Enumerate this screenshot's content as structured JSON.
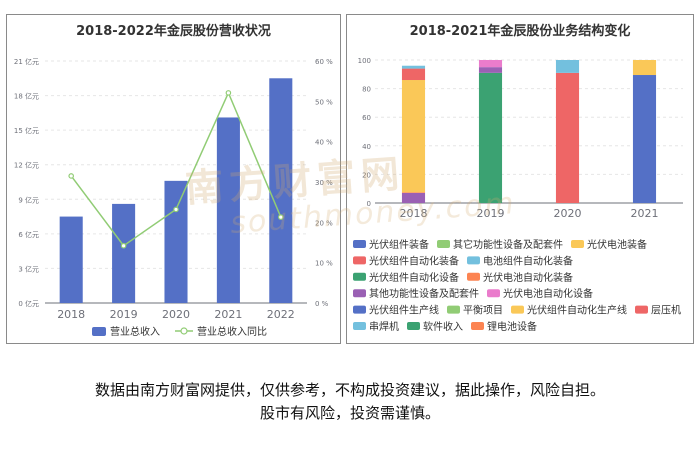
{
  "left": {
    "title": "2018-2022年金辰股份营收状况",
    "y_left_ticks": [
      "0 亿元",
      "3 亿元",
      "6 亿元",
      "9 亿元",
      "12 亿元",
      "15 亿元",
      "18 亿元",
      "21 亿元"
    ],
    "y_right_ticks": [
      "0 %",
      "10 %",
      "20 %",
      "30 %",
      "40 %",
      "50 %",
      "60 %"
    ],
    "legend": {
      "bar": "营业总收入",
      "line": "营业总收入同比"
    }
  },
  "right": {
    "title": "2018-2021年金辰股份业务结构变化",
    "y_ticks": [
      "0",
      "20",
      "40",
      "60",
      "80",
      "100"
    ]
  },
  "disclaimer": {
    "line1": "数据由南方财富网提供，仅供参考，不构成投资建议，据此操作，风险自担。",
    "line2": "股市有风险，投资需谨慎。"
  },
  "watermark": {
    "cn": "南方财富网",
    "en": "southmoney.com"
  },
  "chart_data": [
    {
      "type": "bar",
      "title": "2018-2022年金辰股份营收状况",
      "categories": [
        "2018",
        "2019",
        "2020",
        "2021",
        "2022"
      ],
      "series": [
        {
          "name": "营业总收入",
          "type": "bar",
          "axis": "left",
          "unit": "亿元",
          "color": "#5470c6",
          "values": [
            7.5,
            8.6,
            10.6,
            16.1,
            19.5
          ]
        },
        {
          "name": "营业总收入同比",
          "type": "line",
          "axis": "right",
          "unit": "%",
          "color": "#91cc75",
          "values": [
            31.5,
            14.2,
            23.2,
            52.1,
            21.3
          ]
        }
      ],
      "ylim_left": [
        0,
        21
      ],
      "ylim_right": [
        0,
        60
      ]
    },
    {
      "type": "bar",
      "stacked": true,
      "title": "2018-2021年金辰股份业务结构变化",
      "categories": [
        "2018",
        "2019",
        "2020",
        "2021"
      ],
      "ylim": [
        0,
        100
      ],
      "legend": [
        {
          "name": "光伏组件装备",
          "color": "#5470c6"
        },
        {
          "name": "其它功能性设备及配套件",
          "color": "#91cc75"
        },
        {
          "name": "光伏电池装备",
          "color": "#fac858"
        },
        {
          "name": "光伏组件自动化装备",
          "color": "#ee6666"
        },
        {
          "name": "电池组件自动化装备",
          "color": "#73c0de"
        },
        {
          "name": "光伏组件自动化设备",
          "color": "#3ba272"
        },
        {
          "name": "光伏电池自动化装备",
          "color": "#fc8452"
        },
        {
          "name": "其他功能性设备及配套件",
          "color": "#9a60b4"
        },
        {
          "name": "光伏电池自动化设备",
          "color": "#ea7ccc"
        },
        {
          "name": "光伏组件生产线",
          "color": "#5470c6"
        },
        {
          "name": "平衡项目",
          "color": "#91cc75"
        },
        {
          "name": "光伏组件自动化生产线",
          "color": "#fac858"
        },
        {
          "name": "层压机",
          "color": "#ee6666"
        },
        {
          "name": "串焊机",
          "color": "#73c0de"
        },
        {
          "name": "软件收入",
          "color": "#3ba272"
        },
        {
          "name": "锂电池设备",
          "color": "#fc8452"
        }
      ],
      "stacks": [
        [
          {
            "name": "其他功能性设备及配套件",
            "value": 7.0,
            "color": "#9a60b4"
          },
          {
            "name": "光伏电池自动化装备",
            "value": 0.5,
            "color": "#fc8452"
          },
          {
            "name": "光伏组件自动化生产线",
            "value": 78.5,
            "color": "#fac858"
          },
          {
            "name": "层压机",
            "value": 8.0,
            "color": "#ee6666"
          },
          {
            "name": "串焊机",
            "value": 2.0,
            "color": "#73c0de"
          }
        ],
        [
          {
            "name": "光伏组件自动化设备",
            "value": 91.0,
            "color": "#3ba272"
          },
          {
            "name": "其他功能性设备及配套件",
            "value": 4.0,
            "color": "#9a60b4"
          },
          {
            "name": "光伏电池自动化设备",
            "value": 5.0,
            "color": "#ea7ccc"
          }
        ],
        [
          {
            "name": "光伏组件自动化装备",
            "value": 91.0,
            "color": "#ee6666"
          },
          {
            "name": "电池组件自动化装备",
            "value": 9.0,
            "color": "#73c0de"
          }
        ],
        [
          {
            "name": "光伏组件装备",
            "value": 89.5,
            "color": "#5470c6"
          },
          {
            "name": "光伏电池装备",
            "value": 10.5,
            "color": "#fac858"
          }
        ]
      ]
    }
  ]
}
